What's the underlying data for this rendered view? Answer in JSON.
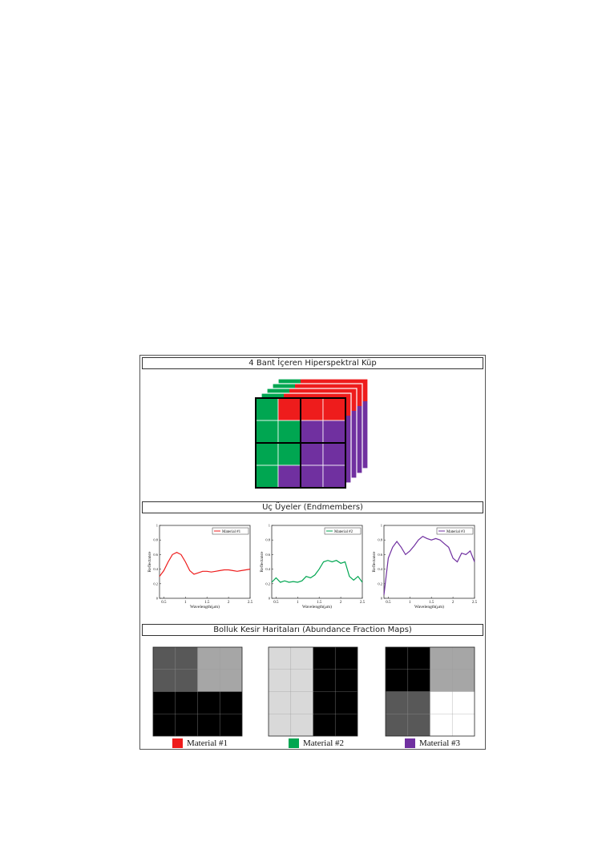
{
  "sections": {
    "cube_title": "4 Bant İçeren Hiperspektral Küp",
    "endmembers_title": "Uç Üyeler (Endmembers)",
    "abundance_title": "Bolluk Kesir Haritaları (Abundance Fraction Maps)"
  },
  "colors": {
    "material1": "#ee1c1c",
    "material2": "#00a651",
    "material3": "#7030a0"
  },
  "cube": {
    "grid": [
      [
        "material2",
        "material1",
        "material1",
        "material1"
      ],
      [
        "material2",
        "material2",
        "material3",
        "material3"
      ],
      [
        "material2",
        "material2",
        "material3",
        "material3"
      ],
      [
        "material2",
        "material3",
        "material3",
        "material3"
      ]
    ]
  },
  "chart_data": [
    {
      "type": "line",
      "legend": "Material #1",
      "xlabel": "Wavelength(μm)",
      "ylabel": "Reflectance",
      "xlim": [
        0.4,
        2.5
      ],
      "ylim": [
        0,
        1
      ],
      "xticks": [
        "0.5",
        "1",
        "1.5",
        "2",
        "2.5"
      ],
      "yticks": [
        "0",
        "0.2",
        "0.4",
        "0.6",
        "0.8",
        "1"
      ],
      "x": [
        0.4,
        0.5,
        0.6,
        0.7,
        0.8,
        0.9,
        1.0,
        1.1,
        1.2,
        1.3,
        1.4,
        1.5,
        1.6,
        1.7,
        1.8,
        1.9,
        2.0,
        2.1,
        2.2,
        2.3,
        2.4,
        2.5
      ],
      "y": [
        0.3,
        0.38,
        0.5,
        0.6,
        0.63,
        0.6,
        0.5,
        0.38,
        0.33,
        0.35,
        0.37,
        0.37,
        0.36,
        0.37,
        0.38,
        0.39,
        0.39,
        0.38,
        0.37,
        0.38,
        0.39,
        0.4
      ]
    },
    {
      "type": "line",
      "legend": "Material #2",
      "xlabel": "Wavelength(μm)",
      "ylabel": "Reflectance",
      "xlim": [
        0.4,
        2.5
      ],
      "ylim": [
        0,
        1
      ],
      "xticks": [
        "0.5",
        "1",
        "1.5",
        "2",
        "2.5"
      ],
      "yticks": [
        "0",
        "0.2",
        "0.4",
        "0.6",
        "0.8",
        "1"
      ],
      "x": [
        0.4,
        0.5,
        0.6,
        0.7,
        0.8,
        0.9,
        1.0,
        1.1,
        1.2,
        1.3,
        1.4,
        1.5,
        1.6,
        1.7,
        1.8,
        1.9,
        2.0,
        2.1,
        2.2,
        2.3,
        2.4,
        2.5
      ],
      "y": [
        0.22,
        0.28,
        0.22,
        0.24,
        0.22,
        0.23,
        0.22,
        0.24,
        0.3,
        0.28,
        0.32,
        0.4,
        0.5,
        0.52,
        0.5,
        0.52,
        0.48,
        0.5,
        0.3,
        0.25,
        0.3,
        0.22
      ]
    },
    {
      "type": "line",
      "legend": "Material #3",
      "xlabel": "Wavelength(μm)",
      "ylabel": "Reflectance",
      "xlim": [
        0.4,
        2.5
      ],
      "ylim": [
        0,
        1
      ],
      "xticks": [
        "0.5",
        "1",
        "1.5",
        "2",
        "2.5"
      ],
      "yticks": [
        "0",
        "0.2",
        "0.4",
        "0.6",
        "0.8",
        "1"
      ],
      "x": [
        0.4,
        0.45,
        0.5,
        0.6,
        0.7,
        0.8,
        0.9,
        1.0,
        1.1,
        1.2,
        1.3,
        1.4,
        1.5,
        1.6,
        1.7,
        1.8,
        1.9,
        2.0,
        2.1,
        2.2,
        2.3,
        2.4,
        2.5
      ],
      "y": [
        0.05,
        0.3,
        0.55,
        0.7,
        0.78,
        0.7,
        0.6,
        0.65,
        0.72,
        0.8,
        0.85,
        0.82,
        0.8,
        0.82,
        0.8,
        0.75,
        0.7,
        0.55,
        0.5,
        0.62,
        0.6,
        0.65,
        0.5
      ]
    }
  ],
  "abundance_maps": [
    {
      "legend": "Material #1",
      "swatch": "material1",
      "quadrants": [
        "#585858",
        "#a6a6a6",
        "#000000",
        "#000000"
      ]
    },
    {
      "legend": "Material #2",
      "swatch": "material2",
      "quadrants": [
        "#d9d9d9",
        "#000000",
        "#d9d9d9",
        "#000000"
      ]
    },
    {
      "legend": "Material #3",
      "swatch": "material3",
      "quadrants": [
        "#000000",
        "#a6a6a6",
        "#585858",
        "#ffffff"
      ]
    }
  ]
}
